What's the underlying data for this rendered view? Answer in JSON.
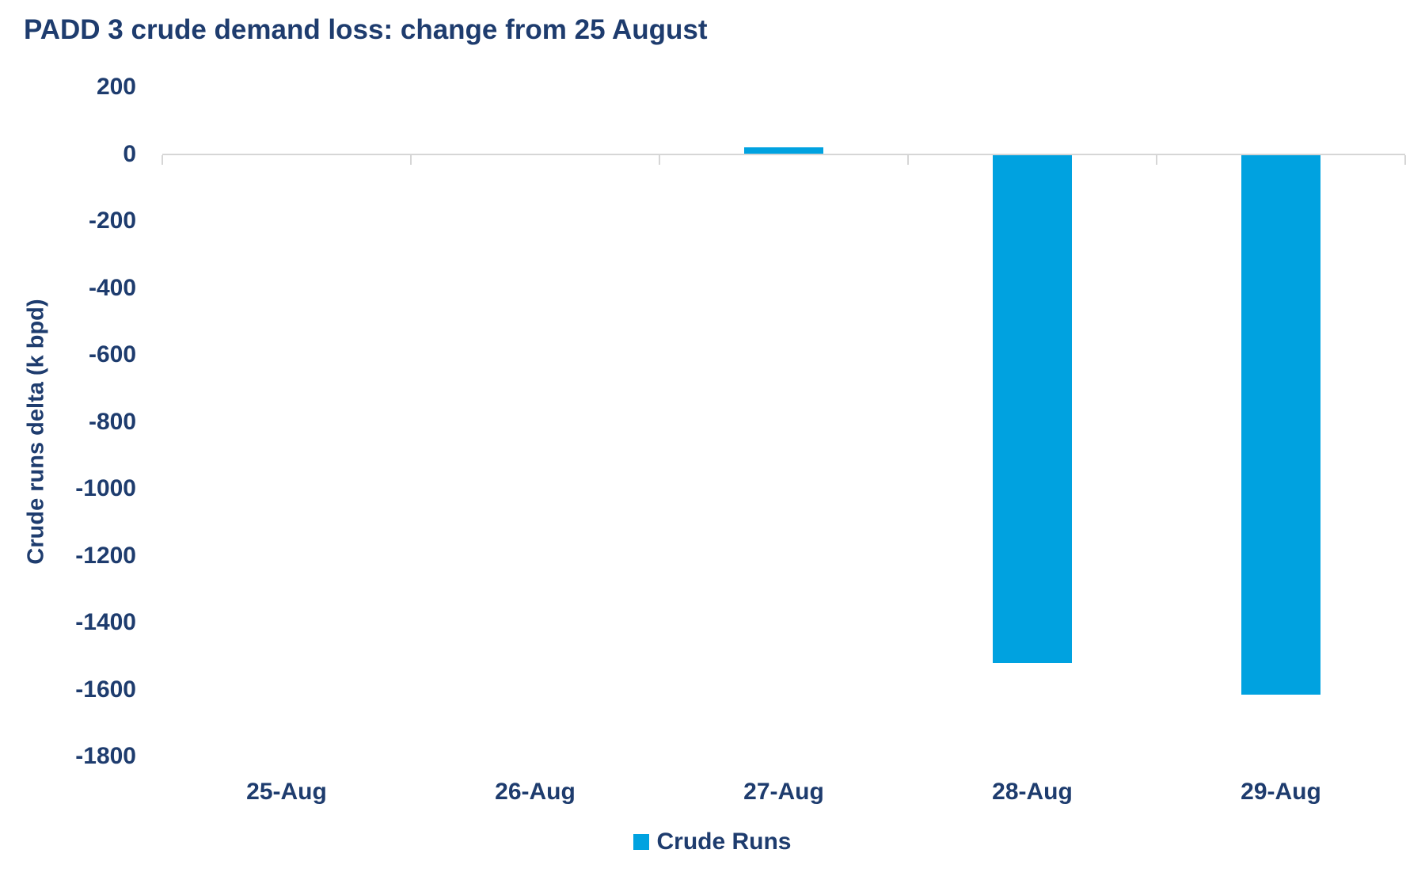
{
  "chart": {
    "title": "PADD 3 crude demand loss: change from 25 August",
    "ylabel": "Crude runs delta (k bpd)",
    "xlabel": ""
  },
  "chart_data": {
    "type": "bar",
    "title": "PADD 3 crude demand loss: change from 25 August",
    "xlabel": "",
    "ylabel": "Crude runs delta (k bpd)",
    "categories": [
      "25-Aug",
      "26-Aug",
      "27-Aug",
      "28-Aug",
      "29-Aug"
    ],
    "series": [
      {
        "name": "Crude Runs",
        "values": [
          0,
          0,
          20,
          -1520,
          -1615
        ]
      }
    ],
    "ylim": [
      -1800,
      200
    ],
    "yticks": [
      200,
      0,
      -200,
      -400,
      -600,
      -800,
      -1000,
      -1200,
      -1400,
      -1600,
      -1800
    ],
    "grid": false,
    "legend_position": "bottom"
  },
  "colors": {
    "bar": "#00a2e0",
    "text": "#1e3c6e",
    "axis_line": "#d6d6d6",
    "background": "#ffffff"
  }
}
